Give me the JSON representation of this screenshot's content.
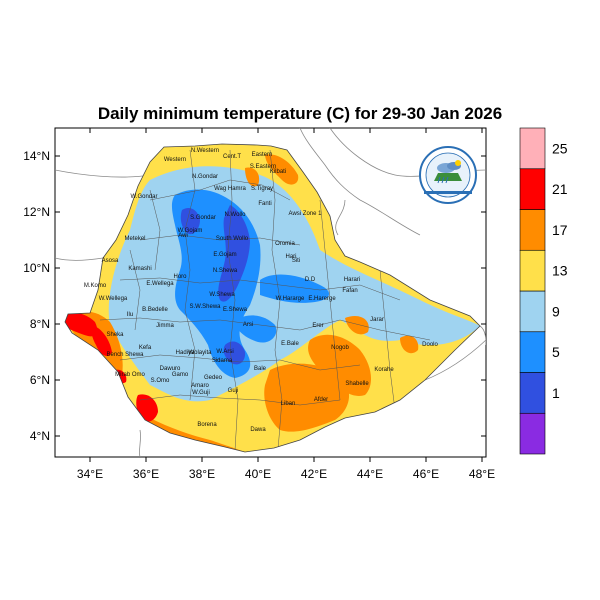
{
  "title": "Daily minimum temperature (C) for 29-30 Jan 2026",
  "colors": {
    "ocean": "#ffffff",
    "land": "#ffffff",
    "border": "#8a8a8a",
    "bins": [
      "#8a2be2",
      "#3050e0",
      "#1e90ff",
      "#9fd3f0",
      "#ffe04a",
      "#ff8c00",
      "#ff0000",
      "#ffb0b8"
    ]
  },
  "colorbar": {
    "labels": [
      "1",
      "5",
      "9",
      "13",
      "17",
      "21",
      "25"
    ]
  },
  "axes": {
    "lon_ticks": [
      "34°E",
      "36°E",
      "38°E",
      "40°E",
      "42°E",
      "44°E",
      "46°E",
      "48°E"
    ],
    "lat_ticks": [
      "14°N",
      "12°N",
      "10°N",
      "8°N",
      "6°N",
      "4°N"
    ]
  },
  "logo": {
    "icon": "ethiopian-meteorology-logo"
  },
  "regions": [
    {
      "name": "N.Western"
    },
    {
      "name": "Cent.T"
    },
    {
      "name": "Eastern"
    },
    {
      "name": "Western"
    },
    {
      "name": "N.Gondar"
    },
    {
      "name": "S.Eastern"
    },
    {
      "name": "Kilbati"
    },
    {
      "name": "Wag Hamra"
    },
    {
      "name": "S.Tigray"
    },
    {
      "name": "Fanti"
    },
    {
      "name": "W.Gondar"
    },
    {
      "name": "S.Gondar"
    },
    {
      "name": "N.Wollo"
    },
    {
      "name": "Awsi Zone 1"
    },
    {
      "name": "Metekel"
    },
    {
      "name": "Awi"
    },
    {
      "name": "W.Gojam"
    },
    {
      "name": "South Wollo"
    },
    {
      "name": "Oromia"
    },
    {
      "name": "Hari"
    },
    {
      "name": "E.Gojam"
    },
    {
      "name": "Siti"
    },
    {
      "name": "Asosa"
    },
    {
      "name": "Kamashi"
    },
    {
      "name": "Horo"
    },
    {
      "name": "N.Shewa"
    },
    {
      "name": "D.D"
    },
    {
      "name": "Harari"
    },
    {
      "name": "M.Komo"
    },
    {
      "name": "E.Wellega"
    },
    {
      "name": "W.Wellega"
    },
    {
      "name": "W.Shewa"
    },
    {
      "name": "Fafan"
    },
    {
      "name": "W.Hararge"
    },
    {
      "name": "E.Harerge"
    },
    {
      "name": "Ilu"
    },
    {
      "name": "B.Bedelle"
    },
    {
      "name": "S.W.Shewa"
    },
    {
      "name": "E.Shewa"
    },
    {
      "name": "Jarar"
    },
    {
      "name": "Erer"
    },
    {
      "name": "Jimma"
    },
    {
      "name": "Arsi"
    },
    {
      "name": "Sheka"
    },
    {
      "name": "Kefa"
    },
    {
      "name": "Nogob"
    },
    {
      "name": "Bench Shewa"
    },
    {
      "name": "Hadiya"
    },
    {
      "name": "Sidama"
    },
    {
      "name": "Wolayita"
    },
    {
      "name": "W.Arsi"
    },
    {
      "name": "E.Bale"
    },
    {
      "name": "Doolo"
    },
    {
      "name": "Dawuro"
    },
    {
      "name": "Korahe"
    },
    {
      "name": "Mirab Omo"
    },
    {
      "name": "Gamo"
    },
    {
      "name": "Bale"
    },
    {
      "name": "Shabelle"
    },
    {
      "name": "S.Omo"
    },
    {
      "name": "Amaro"
    },
    {
      "name": "Gedeo"
    },
    {
      "name": "W.Guji"
    },
    {
      "name": "Guji"
    },
    {
      "name": "Liban"
    },
    {
      "name": "Afder"
    },
    {
      "name": "Borena"
    },
    {
      "name": "Dawa"
    }
  ]
}
